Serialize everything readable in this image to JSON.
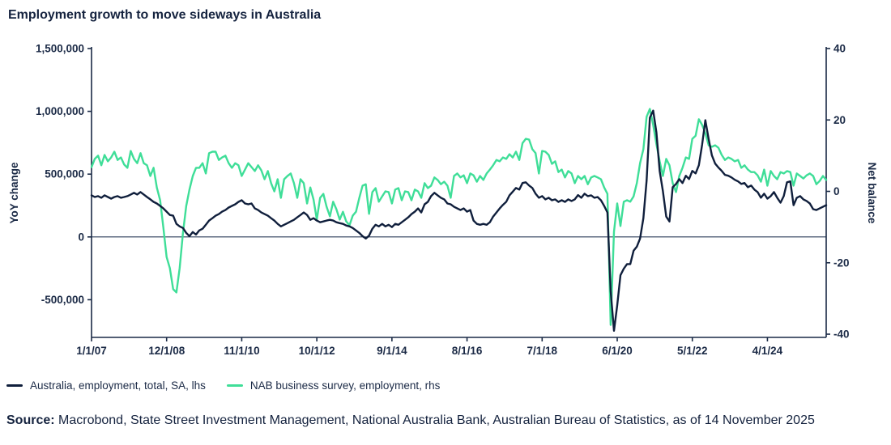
{
  "title": "Employment growth to move sideways in Australia",
  "colors": {
    "navy": "#101f3c",
    "green": "#3fde98",
    "text": "#1b2a46",
    "axis": "#1a2a46",
    "zero_line": "#2c3c58"
  },
  "legend": [
    {
      "label": "Australia, employment, total, SA, lhs",
      "color_key": "navy"
    },
    {
      "label": "NAB business survey, employment, rhs",
      "color_key": "green"
    }
  ],
  "source": {
    "label": "Source:",
    "text": " Macrobond, State Street Investment Management, National Australia Bank, Australian Bureau of Statistics, as of 14 November 2025"
  },
  "chart_data": {
    "type": "line",
    "title": "Employment growth to move sideways in Australia",
    "x_start": "2007-01",
    "x_end": "2025-10",
    "x_freq_months": 1,
    "grid": false,
    "x_ticks": [
      {
        "label": "1/1/07",
        "month_index": 0
      },
      {
        "label": "12/1/08",
        "month_index": 23
      },
      {
        "label": "11/1/10",
        "month_index": 46
      },
      {
        "label": "10/1/12",
        "month_index": 69
      },
      {
        "label": "9/1/14",
        "month_index": 92
      },
      {
        "label": "8/1/16",
        "month_index": 115
      },
      {
        "label": "7/1/18",
        "month_index": 138
      },
      {
        "label": "6/1/20",
        "month_index": 161
      },
      {
        "label": "5/1/22",
        "month_index": 184
      },
      {
        "label": "4/1/24",
        "month_index": 207
      }
    ],
    "left_axis": {
      "label": "YoY change",
      "ticks": [
        "1,500,000",
        "1,000,000",
        "500,000",
        "0",
        "-500,000"
      ],
      "tick_values": [
        1500000,
        1000000,
        500000,
        0,
        -500000
      ],
      "ylim": [
        -800000,
        1500000
      ]
    },
    "right_axis": {
      "label": "Net balance",
      "ticks": [
        "40",
        "20",
        "0",
        "-20",
        "-40"
      ],
      "tick_values": [
        40,
        20,
        0,
        -20,
        -40
      ],
      "ylim": [
        -40.9,
        40
      ]
    },
    "series": [
      {
        "name": "Australia, employment, total, SA, lhs",
        "axis": "left",
        "unit": "persons, YoY change (thousands)",
        "value_multiplier": 1000,
        "color_key": "navy",
        "values": [
          331,
          318,
          325,
          312,
          331,
          318,
          305,
          318,
          325,
          312,
          318,
          325,
          338,
          351,
          338,
          357,
          338,
          318,
          299,
          279,
          266,
          247,
          227,
          201,
          175,
          169,
          104,
          84,
          71,
          32,
          6,
          39,
          19,
          52,
          65,
          97,
          130,
          149,
          169,
          182,
          201,
          214,
          234,
          247,
          260,
          279,
          292,
          266,
          260,
          266,
          227,
          214,
          195,
          182,
          169,
          149,
          130,
          104,
          84,
          97,
          110,
          123,
          136,
          156,
          175,
          195,
          175,
          136,
          149,
          130,
          117,
          123,
          130,
          136,
          130,
          117,
          110,
          104,
          91,
          84,
          71,
          52,
          32,
          6,
          -13,
          10,
          65,
          97,
          84,
          104,
          84,
          97,
          78,
          104,
          97,
          117,
          136,
          156,
          182,
          201,
          227,
          195,
          260,
          279,
          325,
          351,
          331,
          312,
          299,
          266,
          260,
          240,
          227,
          214,
          227,
          201,
          214,
          130,
          104,
          97,
          104,
          97,
          117,
          162,
          195,
          227,
          255,
          280,
          331,
          360,
          390,
          377,
          429,
          435,
          409,
          390,
          344,
          312,
          325,
          299,
          312,
          292,
          299,
          279,
          292,
          279,
          299,
          286,
          299,
          333,
          312,
          344,
          325,
          331,
          312,
          318,
          292,
          247,
          195,
          -430,
          -747,
          -545,
          -305,
          -253,
          -216,
          -216,
          -110,
          -78,
          -13,
          149,
          450,
          950,
          1006,
          831,
          526,
          364,
          162,
          123,
          396,
          422,
          460,
          429,
          487,
          461,
          526,
          506,
          571,
          734,
          929,
          779,
          649,
          584,
          552,
          526,
          494,
          487,
          474,
          455,
          442,
          422,
          429,
          396,
          409,
          377,
          357,
          312,
          344,
          305,
          325,
          357,
          312,
          273,
          325,
          435,
          442,
          253,
          312,
          325,
          299,
          286,
          266,
          221,
          214,
          227,
          240,
          253
        ]
      },
      {
        "name": "NAB business survey, employment, rhs",
        "axis": "right",
        "unit": "net balance",
        "value_multiplier": 1,
        "color_key": "green",
        "values": [
          6.8,
          9.1,
          10,
          7.3,
          10.2,
          8.4,
          9.5,
          11.1,
          8.8,
          9.5,
          7.5,
          6.6,
          11.3,
          9.1,
          7.9,
          10.7,
          7.9,
          7.3,
          4.3,
          6.6,
          1.1,
          -2.5,
          -10.2,
          -18.4,
          -21.5,
          -27.4,
          -28.3,
          -21.5,
          -11.6,
          -4.1,
          0.5,
          4.3,
          6.6,
          6.6,
          7.9,
          5,
          10.7,
          11.1,
          11.1,
          8.8,
          9.5,
          10,
          7.9,
          6.6,
          7.9,
          7.3,
          4.3,
          6.1,
          7.9,
          6.8,
          5.7,
          7.3,
          5.9,
          3.4,
          5.7,
          2.3,
          0,
          3.4,
          -1.8,
          3.4,
          4.3,
          5,
          2.3,
          -1.8,
          3.4,
          2.3,
          -3.4,
          1.1,
          -2.3,
          -7.9,
          -1.8,
          -0.7,
          -4.3,
          -7,
          -2.9,
          -5,
          -7.9,
          -5.7,
          -8.4,
          -9.5,
          -6.8,
          -5.7,
          -1.8,
          1.6,
          2,
          -6.3,
          -0.2,
          0.9,
          -2.9,
          -1.4,
          0,
          -0.2,
          -3.4,
          0.5,
          0.9,
          -2.5,
          0,
          -0.2,
          -2.5,
          0.5,
          0,
          -1.8,
          2.3,
          0.9,
          1.6,
          3.9,
          3.2,
          2,
          2.7,
          1.6,
          -1.8,
          4.3,
          5,
          3.9,
          4.5,
          2.3,
          5,
          4.5,
          2.7,
          4.3,
          3.2,
          5,
          6.1,
          7.3,
          8.8,
          8.4,
          9.5,
          9.1,
          10.4,
          9.5,
          11.1,
          8.8,
          13.5,
          14.7,
          14.5,
          11.8,
          10.7,
          5,
          11.3,
          11.1,
          10.2,
          7.7,
          8.4,
          5.4,
          6.1,
          3.9,
          5.7,
          5,
          2.3,
          4.3,
          3.4,
          4.3,
          2,
          3.9,
          4.3,
          3.9,
          3.4,
          1.1,
          -0.7,
          -37.4,
          -11.3,
          -3.4,
          -9.7,
          -2.9,
          -2.5,
          -2.9,
          -1.4,
          2.3,
          7.9,
          11.8,
          20.9,
          23.1,
          18.6,
          13.2,
          8.4,
          4.3,
          9.1,
          7.3,
          2.3,
          -0.2,
          4.3,
          6.6,
          9.5,
          9.1,
          14.7,
          15.6,
          20.2,
          18.6,
          16.3,
          12.9,
          12.5,
          12.9,
          12.2,
          10.2,
          8.8,
          9.5,
          9.1,
          8.4,
          8.8,
          6.6,
          7.3,
          6.1,
          5.4,
          5.4,
          4.5,
          2.7,
          6.1,
          1.6,
          5.7,
          4.3,
          3.4,
          5.4,
          5,
          5.7,
          5.4,
          1.6,
          5,
          4.3,
          3.6,
          4.5,
          5,
          4.3,
          2,
          2.9,
          4.3,
          3.2
        ]
      }
    ]
  }
}
